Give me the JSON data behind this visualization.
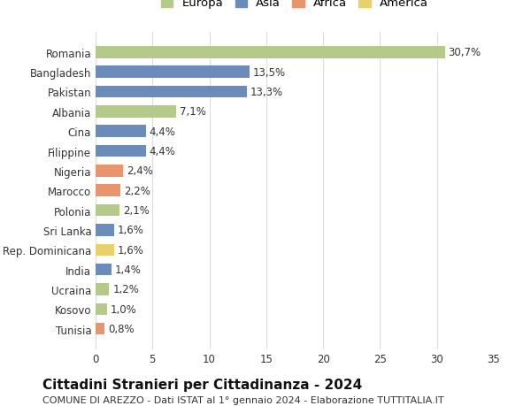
{
  "countries": [
    "Tunisia",
    "Kosovo",
    "Ucraina",
    "India",
    "Rep. Dominicana",
    "Sri Lanka",
    "Polonia",
    "Marocco",
    "Nigeria",
    "Filippine",
    "Cina",
    "Albania",
    "Pakistan",
    "Bangladesh",
    "Romania"
  ],
  "values": [
    0.8,
    1.0,
    1.2,
    1.4,
    1.6,
    1.6,
    2.1,
    2.2,
    2.4,
    4.4,
    4.4,
    7.1,
    13.3,
    13.5,
    30.7
  ],
  "continents": [
    "Africa",
    "Europa",
    "Europa",
    "Asia",
    "America",
    "Asia",
    "Europa",
    "Africa",
    "Africa",
    "Asia",
    "Asia",
    "Europa",
    "Asia",
    "Asia",
    "Europa"
  ],
  "labels": [
    "0,8%",
    "1,0%",
    "1,2%",
    "1,4%",
    "1,6%",
    "1,6%",
    "2,1%",
    "2,2%",
    "2,4%",
    "4,4%",
    "4,4%",
    "7,1%",
    "13,3%",
    "13,5%",
    "30,7%"
  ],
  "continent_colors": {
    "Europa": "#b5c98a",
    "Asia": "#6b8cba",
    "Africa": "#e8956d",
    "America": "#e8d06d"
  },
  "legend_order": [
    "Europa",
    "Asia",
    "Africa",
    "America"
  ],
  "xlim": [
    0,
    35
  ],
  "xticks": [
    0,
    5,
    10,
    15,
    20,
    25,
    30,
    35
  ],
  "title": "Cittadini Stranieri per Cittadinanza - 2024",
  "subtitle": "COMUNE DI AREZZO - Dati ISTAT al 1° gennaio 2024 - Elaborazione TUTTITALIA.IT",
  "background_color": "#ffffff",
  "grid_color": "#dddddd",
  "bar_height": 0.6,
  "label_fontsize": 8.5,
  "tick_fontsize": 8.5,
  "title_fontsize": 11,
  "subtitle_fontsize": 8
}
